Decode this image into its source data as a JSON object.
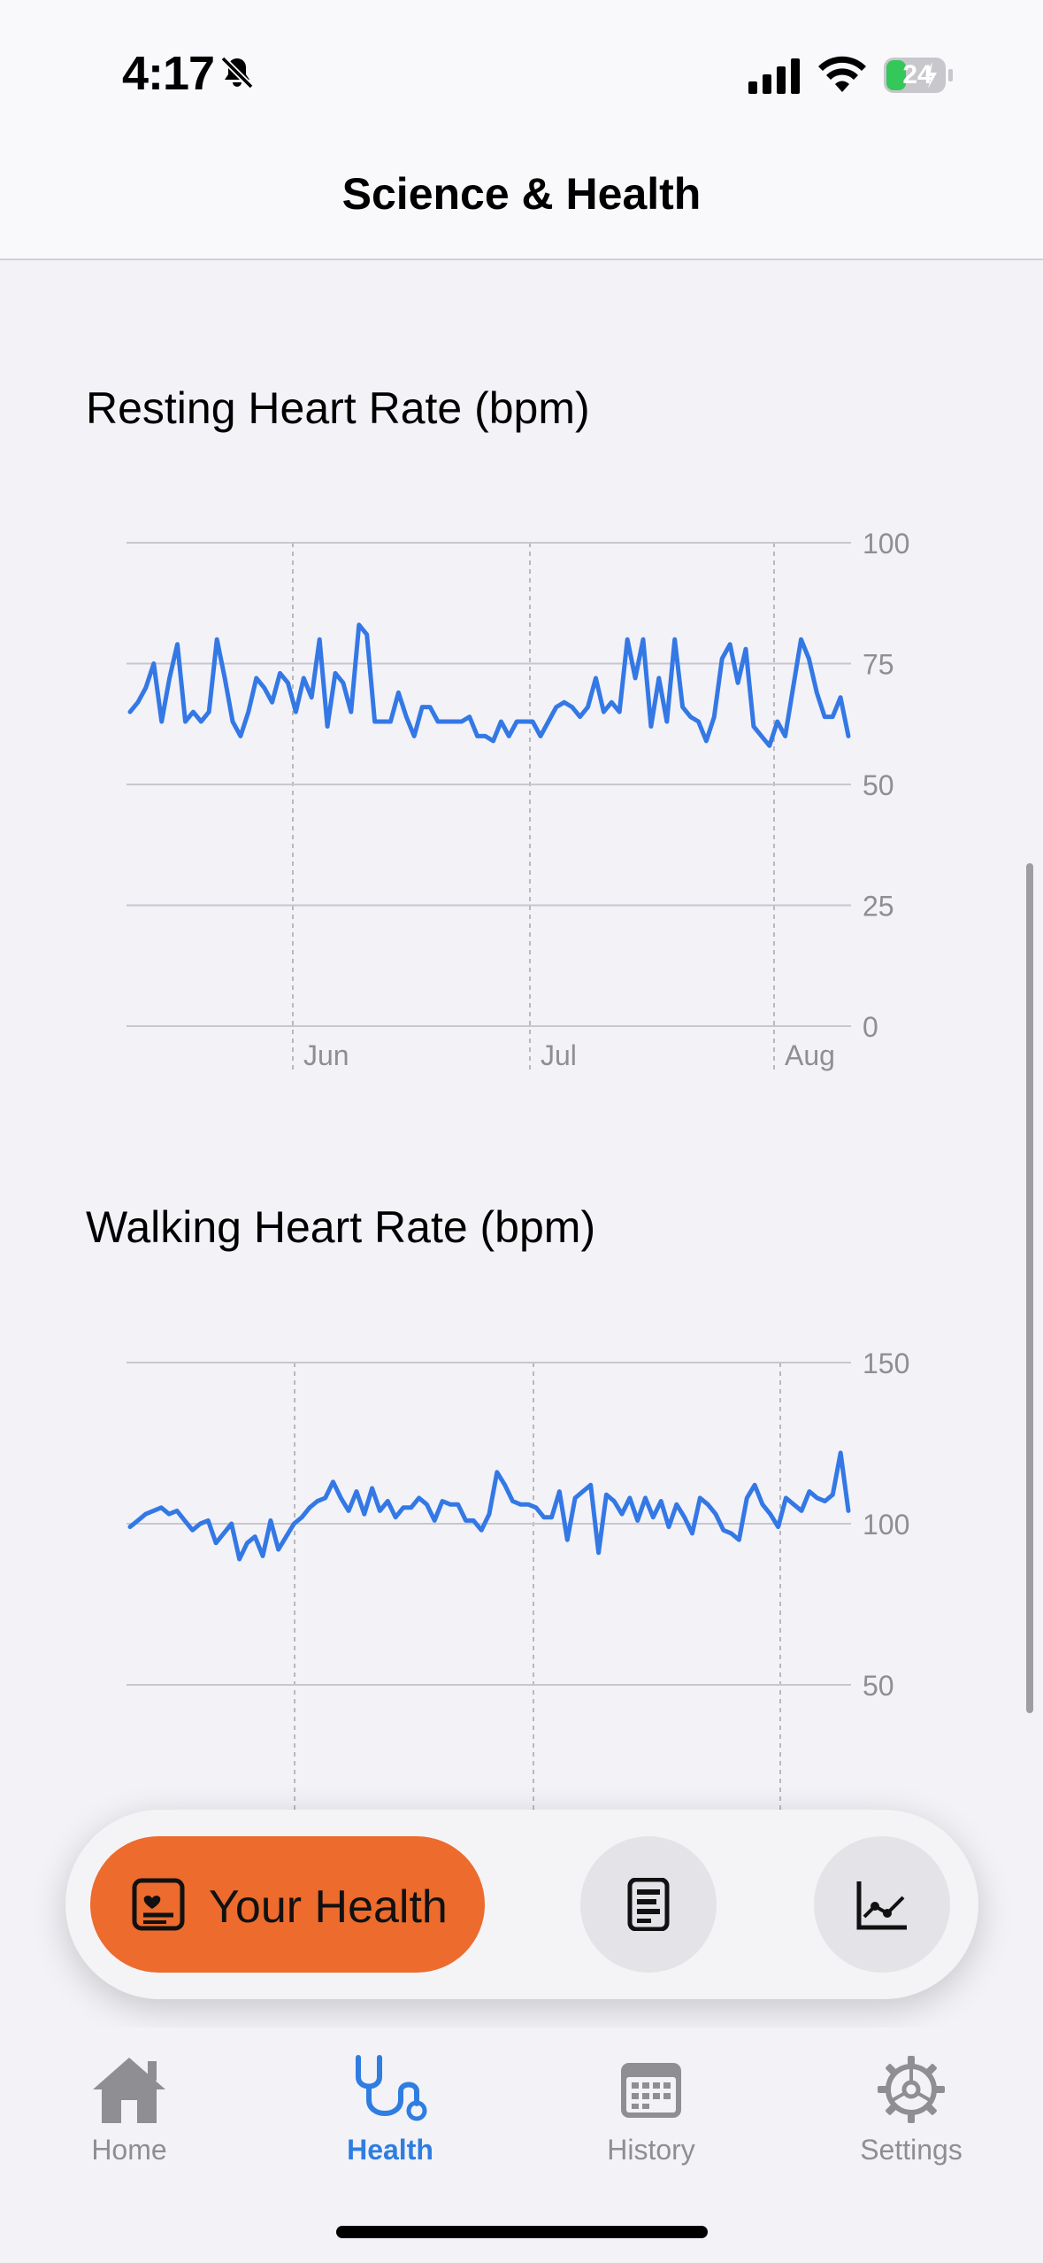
{
  "status_bar": {
    "time": "4:17",
    "battery": "24",
    "bell_icon": "bell-slash-icon"
  },
  "header": {
    "title": "Science & Health"
  },
  "charts": [
    {
      "title": "Resting Heart Rate (bpm)",
      "chart_data": {
        "type": "line",
        "title": "Resting Heart Rate (bpm)",
        "color": "#3478e5",
        "ylim": [
          0,
          100
        ],
        "yticks": [
          "100",
          "75",
          "50",
          "25",
          "0"
        ],
        "xticks": [
          "Jun",
          "Jul",
          "Aug"
        ],
        "values": [
          65,
          67,
          70,
          75,
          63,
          72,
          79,
          63,
          65,
          63,
          65,
          80,
          72,
          63,
          60,
          65,
          72,
          70,
          67,
          73,
          71,
          65,
          72,
          68,
          80,
          62,
          73,
          71,
          65,
          83,
          81,
          63,
          63,
          63,
          69,
          64,
          60,
          66,
          66,
          63,
          63,
          63,
          63,
          64,
          60,
          60,
          59,
          63,
          60,
          63,
          63,
          63,
          60,
          63,
          66,
          67,
          66,
          64,
          66,
          72,
          65,
          67,
          65,
          80,
          72,
          80,
          62,
          72,
          63,
          80,
          66,
          64,
          63,
          59,
          64,
          76,
          79,
          71,
          78,
          62,
          60,
          58,
          63,
          60,
          70,
          80,
          76,
          69,
          64,
          64,
          68,
          60
        ]
      }
    },
    {
      "title": "Walking Heart Rate (bpm)",
      "chart_data": {
        "type": "line",
        "title": "Walking Heart Rate (bpm)",
        "color": "#3478e5",
        "ylim": [
          50,
          150
        ],
        "yticks": [
          "150",
          "100",
          "50"
        ],
        "values": [
          99,
          101,
          103,
          104,
          105,
          103,
          104,
          101,
          98,
          100,
          101,
          94,
          97,
          100,
          89,
          94,
          96,
          90,
          101,
          92,
          96,
          100,
          102,
          105,
          107,
          108,
          113,
          108,
          104,
          110,
          103,
          111,
          104,
          107,
          102,
          105,
          105,
          108,
          106,
          101,
          107,
          106,
          106,
          101,
          101,
          98,
          103,
          116,
          112,
          107,
          106,
          106,
          105,
          102,
          102,
          110,
          95,
          108,
          110,
          112,
          91,
          109,
          107,
          103,
          108,
          101,
          108,
          102,
          107,
          99,
          106,
          102,
          97,
          108,
          106,
          103,
          98,
          97,
          95,
          108,
          112,
          106,
          103,
          99,
          108,
          106,
          104,
          110,
          108,
          107,
          109,
          122,
          104
        ]
      }
    }
  ],
  "floating_bar": {
    "primary_label": "Your Health"
  },
  "tabs": [
    {
      "label": "Home",
      "icon": "house-icon"
    },
    {
      "label": "Health",
      "icon": "stethoscope-icon"
    },
    {
      "label": "History",
      "icon": "calendar-icon"
    },
    {
      "label": "Settings",
      "icon": "gear-icon"
    }
  ]
}
